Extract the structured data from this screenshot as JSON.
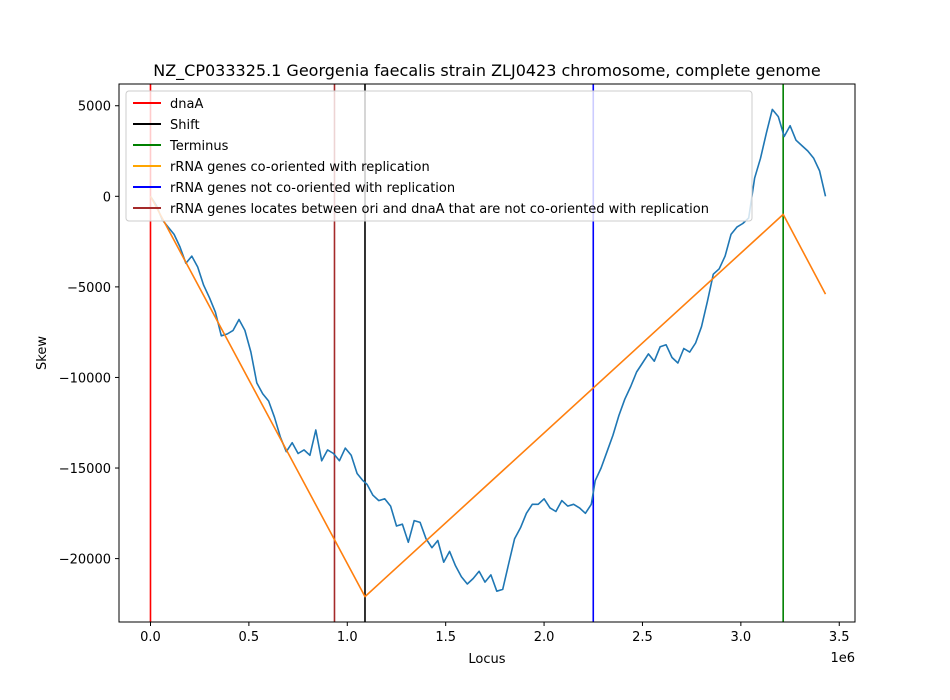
{
  "chart_data": {
    "type": "line",
    "title": "NZ_CP033325.1 Georgenia faecalis strain ZLJ0423 chromosome, complete genome",
    "xlabel": "Locus",
    "ylabel": "Skew",
    "x_offset_label": "1e6",
    "xlim": [
      -0.16,
      3.58
    ],
    "ylim": [
      -23500,
      6200
    ],
    "x_ticks": [
      0.0,
      0.5,
      1.0,
      1.5,
      2.0,
      2.5,
      3.0,
      3.5
    ],
    "x_tick_labels": [
      "0.0",
      "0.5",
      "1.0",
      "1.5",
      "2.0",
      "2.5",
      "3.0",
      "3.5"
    ],
    "y_ticks": [
      5000,
      0,
      -5000,
      -10000,
      -15000,
      -20000
    ],
    "y_tick_labels": [
      "5000",
      "0",
      "−5000",
      "−10000",
      "−15000",
      "−20000"
    ],
    "vlines": [
      {
        "name": "dnaA",
        "x": 0.0,
        "color": "#ff0000"
      },
      {
        "name": "Shift",
        "x": 1.09,
        "color": "#000000"
      },
      {
        "name": "Terminus",
        "x": 3.215,
        "color": "#008000"
      },
      {
        "name": "rRNA genes not co-oriented with replication",
        "x": 2.25,
        "color": "#0000ff"
      },
      {
        "name": "rRNA genes locates between ori and dnaA that are not co-oriented with replication",
        "x": 0.935,
        "color": "#a52a2a"
      }
    ],
    "series": [
      {
        "name": "skew",
        "color": "#1f77b4",
        "x": [
          0.0,
          0.03,
          0.06,
          0.09,
          0.12,
          0.15,
          0.18,
          0.21,
          0.24,
          0.27,
          0.3,
          0.33,
          0.36,
          0.39,
          0.42,
          0.45,
          0.48,
          0.51,
          0.54,
          0.57,
          0.6,
          0.63,
          0.66,
          0.69,
          0.72,
          0.75,
          0.78,
          0.81,
          0.84,
          0.87,
          0.9,
          0.93,
          0.96,
          0.99,
          1.02,
          1.05,
          1.08,
          1.1,
          1.13,
          1.16,
          1.19,
          1.22,
          1.25,
          1.28,
          1.31,
          1.34,
          1.37,
          1.4,
          1.43,
          1.46,
          1.49,
          1.52,
          1.55,
          1.58,
          1.61,
          1.64,
          1.67,
          1.7,
          1.73,
          1.76,
          1.79,
          1.82,
          1.85,
          1.88,
          1.91,
          1.94,
          1.97,
          2.0,
          2.03,
          2.06,
          2.09,
          2.12,
          2.15,
          2.18,
          2.21,
          2.24,
          2.26,
          2.29,
          2.32,
          2.35,
          2.38,
          2.41,
          2.44,
          2.47,
          2.5,
          2.53,
          2.56,
          2.59,
          2.62,
          2.65,
          2.68,
          2.71,
          2.74,
          2.77,
          2.8,
          2.83,
          2.86,
          2.89,
          2.92,
          2.95,
          2.98,
          3.01,
          3.04,
          3.07,
          3.1,
          3.13,
          3.16,
          3.19,
          3.22,
          3.25,
          3.28,
          3.31,
          3.34,
          3.37,
          3.4,
          3.43
        ],
        "y": [
          0,
          -500,
          -1300,
          -1700,
          -2100,
          -2800,
          -3700,
          -3300,
          -3900,
          -4900,
          -5600,
          -6400,
          -7700,
          -7600,
          -7400,
          -6800,
          -7400,
          -8600,
          -10300,
          -10900,
          -11300,
          -12200,
          -13300,
          -14100,
          -13600,
          -14200,
          -14000,
          -14300,
          -12900,
          -14600,
          -14000,
          -14200,
          -14600,
          -13900,
          -14300,
          -15300,
          -15700,
          -15900,
          -16500,
          -16800,
          -16700,
          -17100,
          -18200,
          -18100,
          -19100,
          -17900,
          -18000,
          -18900,
          -19400,
          -19000,
          -20200,
          -19600,
          -20400,
          -21000,
          -21400,
          -21100,
          -20700,
          -21300,
          -20900,
          -21800,
          -21700,
          -20300,
          -18900,
          -18300,
          -17500,
          -17000,
          -17000,
          -16700,
          -17200,
          -17400,
          -16800,
          -17100,
          -17000,
          -17200,
          -17500,
          -17000,
          -15700,
          -15000,
          -14100,
          -13200,
          -12100,
          -11200,
          -10500,
          -9700,
          -9200,
          -8700,
          -9100,
          -8300,
          -8200,
          -8900,
          -9200,
          -8400,
          -8600,
          -8100,
          -7200,
          -5800,
          -4300,
          -4000,
          -3300,
          -2100,
          -1700,
          -1500,
          -1200,
          1000,
          2100,
          3500,
          4800,
          4400,
          3300,
          3900,
          3100,
          2800,
          2500,
          2100,
          1400,
          0
        ]
      },
      {
        "name": "rRNA genes co-oriented with replication",
        "color": "#ff7f0e",
        "x": [
          0.0,
          1.09,
          3.215,
          3.43
        ],
        "y": [
          0,
          -22100,
          -1000,
          -5400
        ]
      }
    ],
    "legend": {
      "placement": "top-left",
      "entries": [
        {
          "label": "dnaA",
          "color": "#ff0000"
        },
        {
          "label": "Shift",
          "color": "#000000"
        },
        {
          "label": "Terminus",
          "color": "#008000"
        },
        {
          "label": "rRNA genes co-oriented with replication",
          "color": "#ffa500"
        },
        {
          "label": "rRNA genes not co-oriented with replication",
          "color": "#0000ff"
        },
        {
          "label": "rRNA genes locates between ori and dnaA that are not co-oriented with replication",
          "color": "#a52a2a"
        }
      ]
    }
  }
}
